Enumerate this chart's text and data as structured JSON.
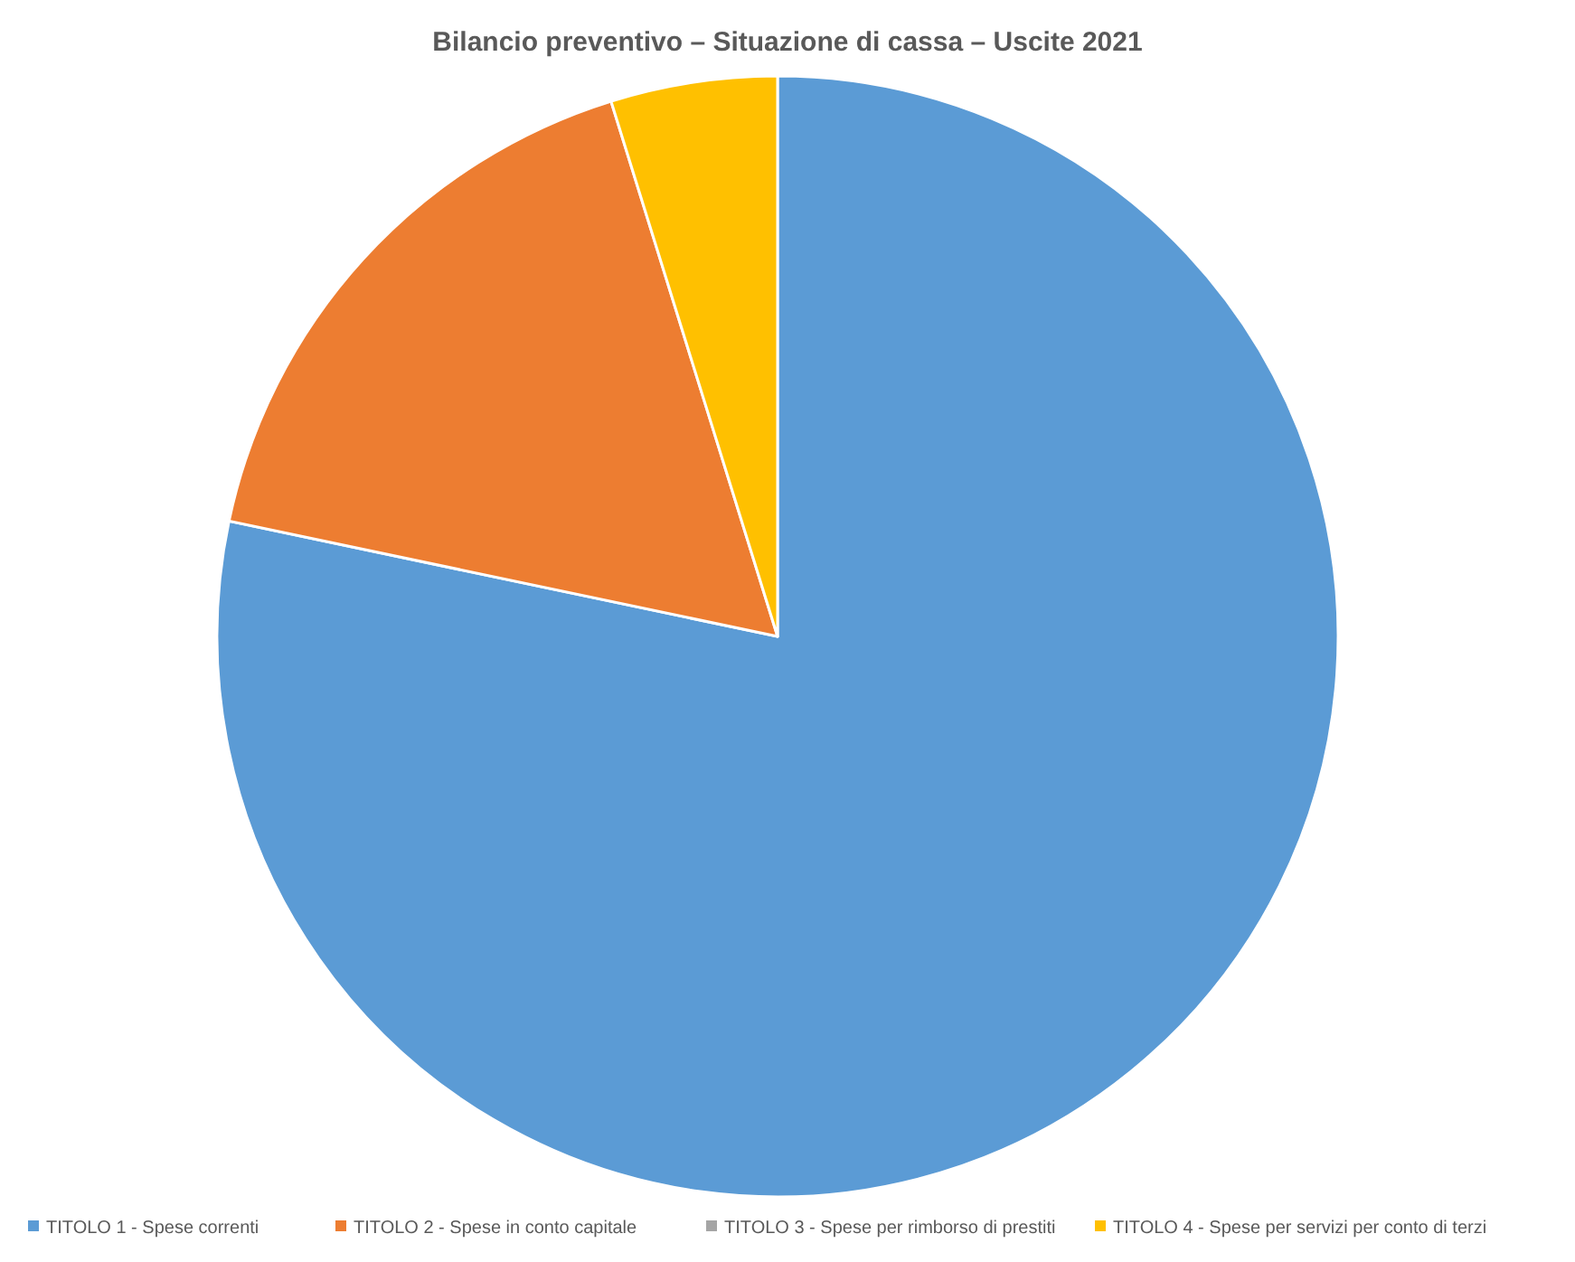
{
  "chart_data": {
    "type": "pie",
    "title": "Bilancio preventivo – Situazione di cassa – Uscite 2021",
    "categories": [
      "TITOLO 1 - Spese correnti",
      "TITOLO 2 - Spese in conto capitale",
      "TITOLO 3 - Spese per rimborso di prestiti",
      "TITOLO 4 - Spese per servizi per conto di terzi"
    ],
    "values": [
      78.3,
      16.9,
      0,
      4.8
    ],
    "colors": [
      "#5b9bd5",
      "#ed7d31",
      "#a5a5a5",
      "#ffc000"
    ],
    "legend": "bottom"
  }
}
